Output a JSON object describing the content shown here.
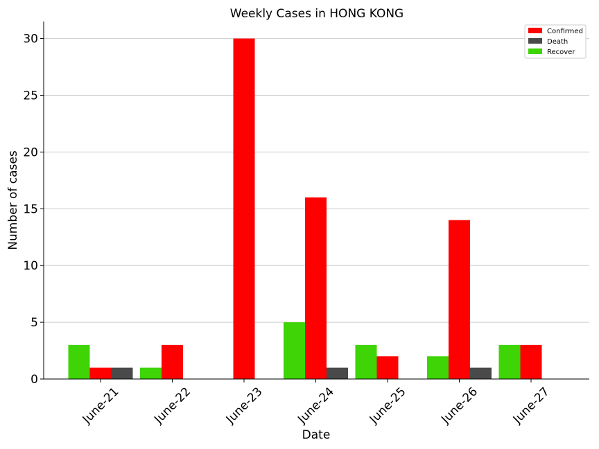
{
  "chart_data": {
    "type": "bar",
    "title": "Weekly Cases in HONG KONG",
    "xlabel": "Date",
    "ylabel": "Number of cases",
    "categories": [
      "June-21",
      "June-22",
      "June-23",
      "June-24",
      "June-25",
      "June-26",
      "June-27"
    ],
    "series": [
      {
        "name": "Recover",
        "color": "#3ed405",
        "values": [
          3,
          1,
          0,
          5,
          3,
          2,
          3
        ]
      },
      {
        "name": "Confirmed",
        "color": "#ff0000",
        "values": [
          1,
          3,
          30,
          16,
          2,
          14,
          3
        ]
      },
      {
        "name": "Death",
        "color": "#4a4a4a",
        "values": [
          1,
          0,
          0,
          1,
          0,
          1,
          0
        ]
      }
    ],
    "legend_order": [
      "Confirmed",
      "Death",
      "Recover"
    ],
    "legend_position": "top-right",
    "ylim": [
      0,
      31.5
    ],
    "yticks": [
      0,
      5,
      10,
      15,
      20,
      25,
      30
    ],
    "grid": "horizontal"
  }
}
